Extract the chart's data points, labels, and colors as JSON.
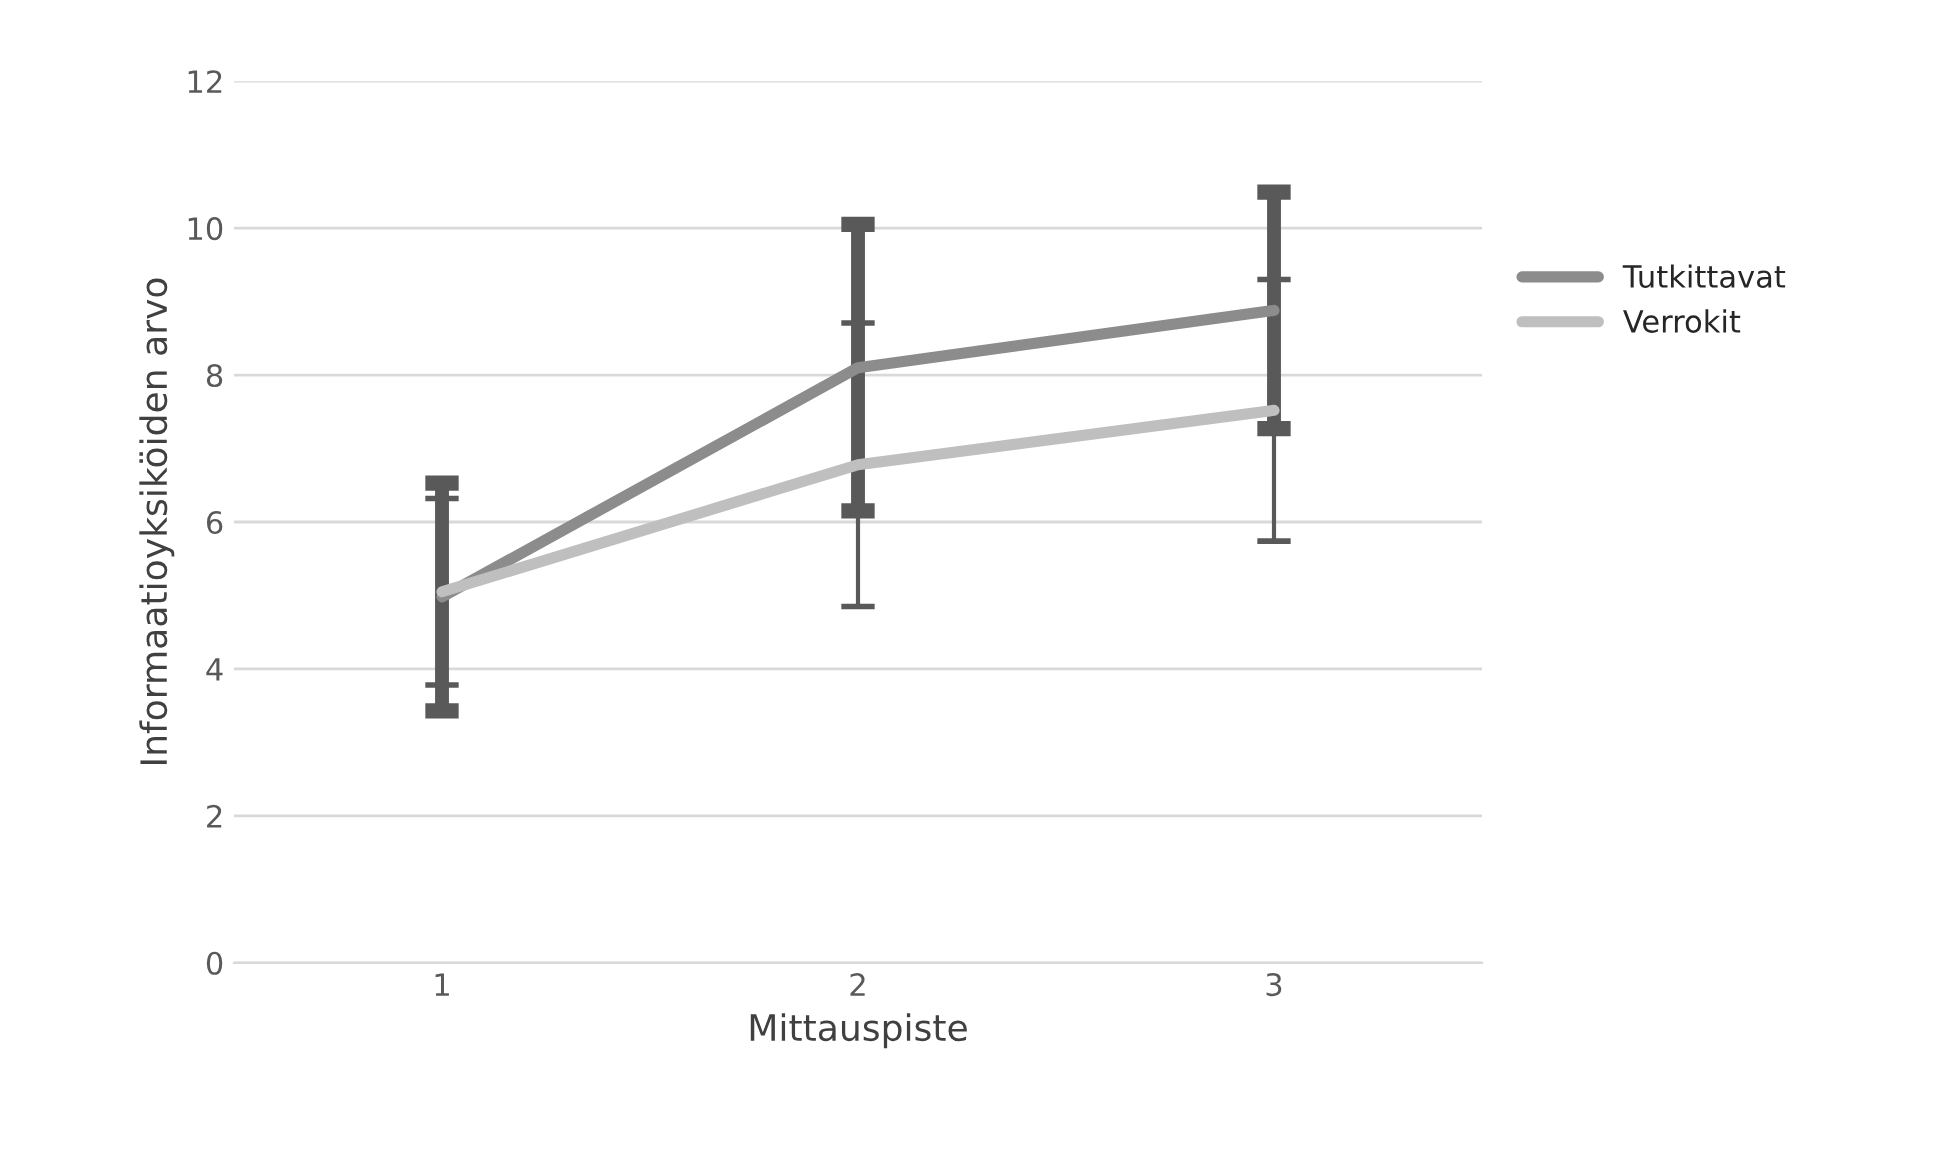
{
  "chart_data": {
    "type": "line",
    "xlabel": "Mittauspiste",
    "ylabel": "Informaatioyksiköiden arvo",
    "categories": [
      "1",
      "2",
      "3"
    ],
    "series": [
      {
        "name": "Tutkittavat",
        "color": "#8c8c8c",
        "values": [
          4.98,
          8.1,
          8.88
        ],
        "errors": [
          1.55,
          1.95,
          1.61
        ]
      },
      {
        "name": "Verrokit",
        "color": "#bfbfbf",
        "values": [
          5.05,
          6.78,
          7.52
        ],
        "errors": [
          1.27,
          1.93,
          1.78
        ]
      }
    ],
    "ylim": [
      0,
      12
    ],
    "yticks": [
      0,
      2,
      4,
      6,
      8,
      10,
      12
    ],
    "grid": "y",
    "legend": "right",
    "marker": "none",
    "line_style": "solid"
  }
}
